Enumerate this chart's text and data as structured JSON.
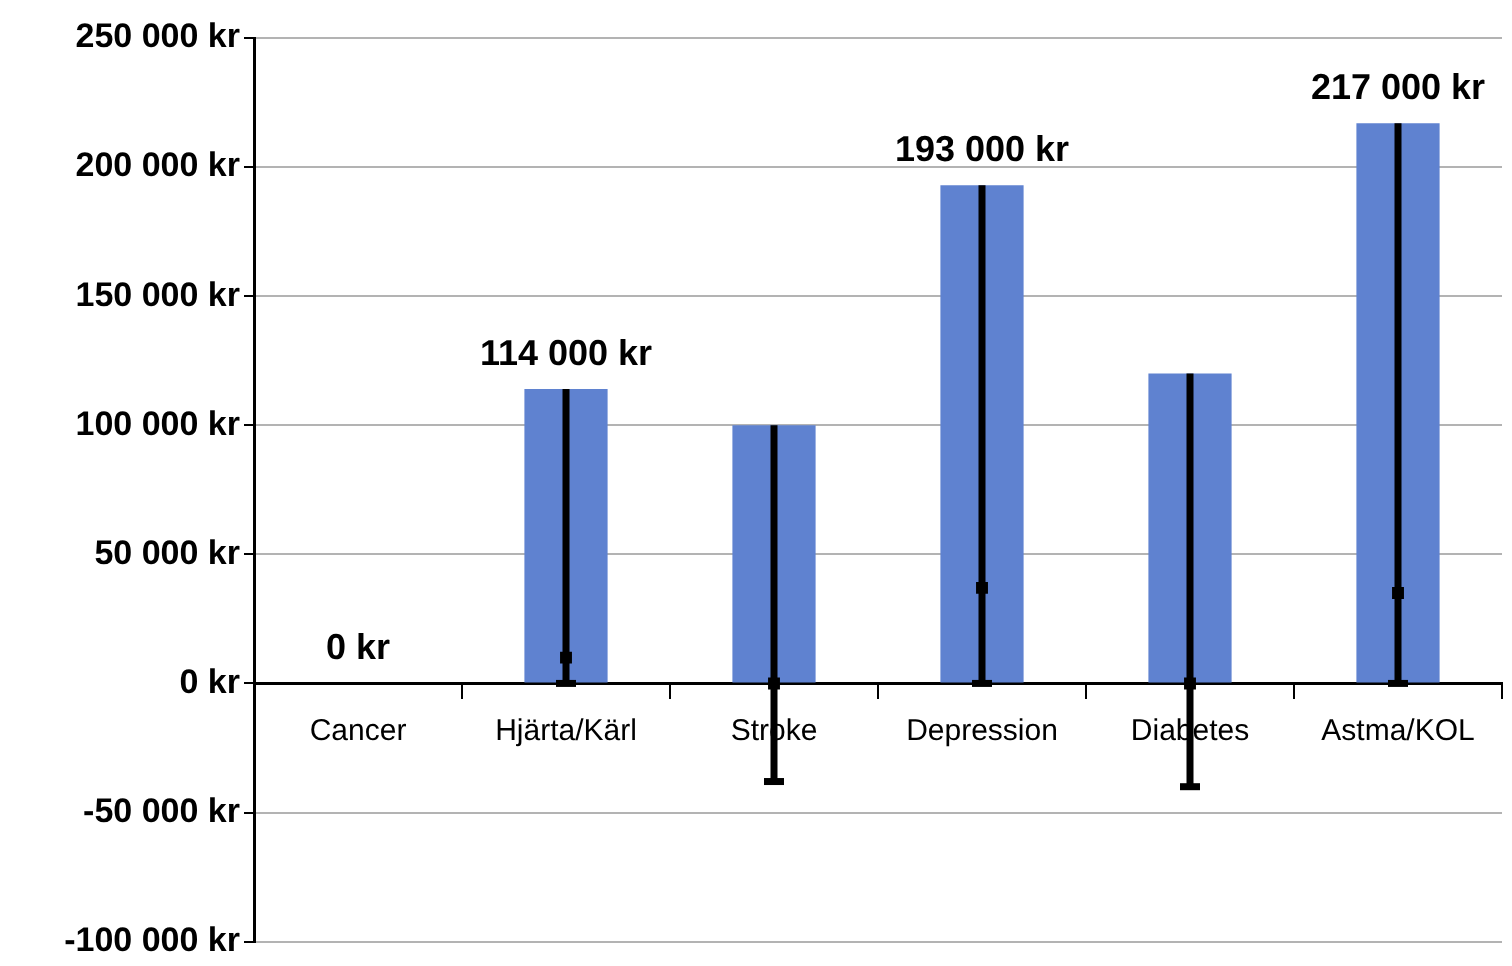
{
  "chart_data": {
    "type": "bar",
    "categories": [
      "Cancer",
      "Hjärta/Kärl",
      "Stroke",
      "Depression",
      "Diabetes",
      "Astma/KOL"
    ],
    "series": [
      {
        "color": "#5f82d0",
        "values": [
          0,
          114000,
          100000,
          193000,
          120000,
          217000
        ],
        "errors": [
          null,
          [
            0,
            114000
          ],
          [
            -38000,
            100000
          ],
          [
            0,
            193000
          ],
          [
            -40000,
            120000
          ],
          [
            0,
            217000
          ]
        ],
        "value_labels": [
          "0 kr",
          "114 000 kr",
          null,
          "193 000 kr",
          null,
          "217 000 kr"
        ]
      },
      {
        "type": "scatter",
        "color": "#000000",
        "x": [
          "Cancer",
          "Hjärta/Kärl",
          "Stroke",
          "Depression",
          "Diabetes",
          "Astma/KOL"
        ],
        "values": [
          null,
          10000,
          0,
          37000,
          0,
          35000
        ]
      }
    ],
    "ylim": [
      -100000,
      250000
    ],
    "yticks": [
      {
        "value": -100000,
        "label": "-100 000 kr"
      },
      {
        "value": -50000,
        "label": "-50 000 kr"
      },
      {
        "value": 0,
        "label": "0 kr"
      },
      {
        "value": 50000,
        "label": "50 000 kr"
      },
      {
        "value": 100000,
        "label": "100 000 kr"
      },
      {
        "value": 150000,
        "label": "150 000 kr"
      },
      {
        "value": 200000,
        "label": "200 000 kr"
      },
      {
        "value": 250000,
        "label": "250 000 kr"
      }
    ],
    "grid": "y",
    "legend": false,
    "marker": "square"
  }
}
